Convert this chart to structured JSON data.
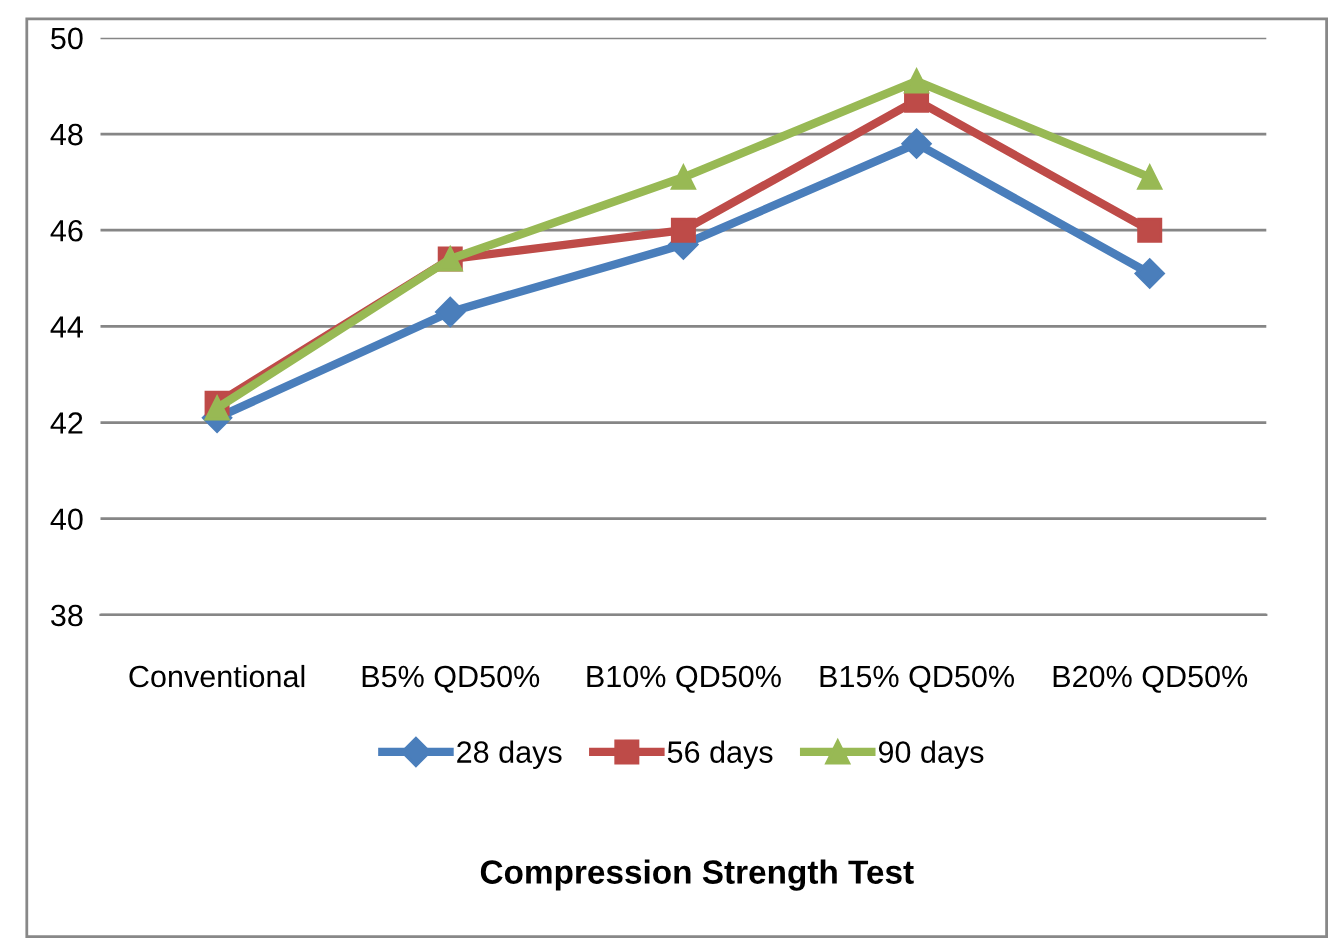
{
  "chart_data": {
    "type": "line",
    "annotations": [
      "Compression Strength Test"
    ],
    "categories": [
      "Conventional",
      "B5% QD50%",
      "B10% QD50%",
      "B15% QD50%",
      "B20% QD50%"
    ],
    "series": [
      {
        "name": "28 days",
        "color": "#4a7ebb",
        "marker": "diamond",
        "values": [
          42.1,
          44.3,
          45.7,
          47.8,
          45.1
        ]
      },
      {
        "name": "56 days",
        "color": "#be4b48",
        "marker": "square",
        "values": [
          42.4,
          45.4,
          46.0,
          48.7,
          46.0
        ]
      },
      {
        "name": "90 days",
        "color": "#98b954",
        "marker": "triangle",
        "values": [
          42.3,
          45.4,
          47.1,
          49.1,
          47.1
        ]
      }
    ],
    "ylim": [
      38,
      50
    ],
    "yticks": [
      38,
      40,
      42,
      44,
      46,
      48,
      50
    ],
    "grid": "y",
    "legend": "bottom"
  }
}
